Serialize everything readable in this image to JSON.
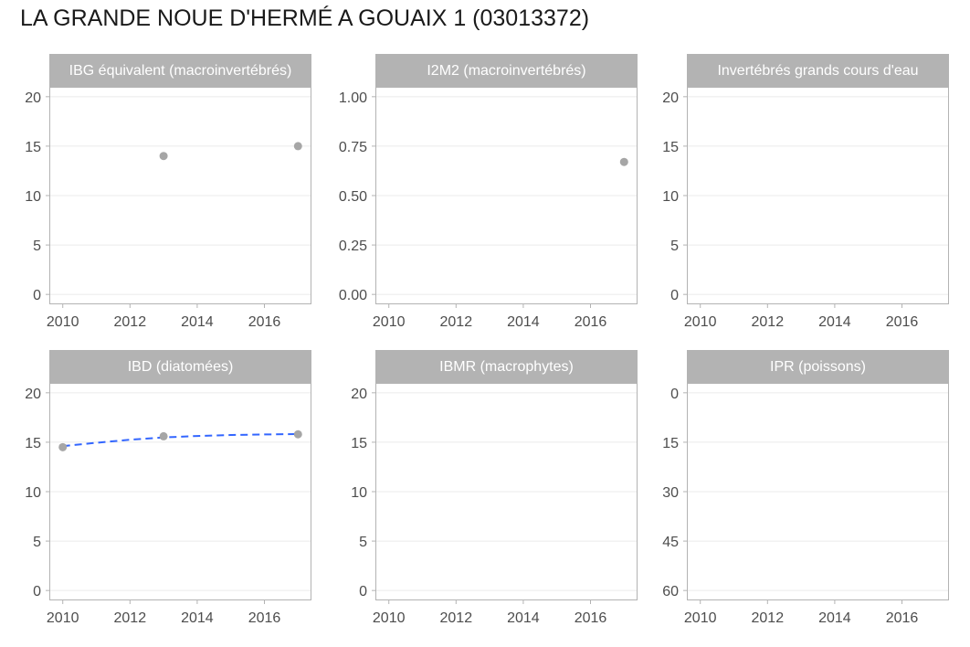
{
  "title": "LA GRANDE NOUE D'HERMÉ A GOUAIX 1 (03013372)",
  "colors": {
    "strip": "#b3b3b3",
    "strip_text": "#ffffff",
    "point": "#a6a6a6",
    "trend": "#3366ff",
    "grid": "#ebebeb",
    "border": "#b3b3b3",
    "tick_text": "#4d4d4d"
  },
  "chart_data": [
    {
      "type": "scatter",
      "title": "IBG équivalent (macroinvertébrés)",
      "xlim": [
        2009.6,
        2017.4
      ],
      "ylim": [
        -1,
        21
      ],
      "x_ticks": [
        2010,
        2012,
        2014,
        2016
      ],
      "y_ticks": [
        0,
        5,
        10,
        15,
        20
      ],
      "y_tick_labels": [
        "0",
        "5",
        "10",
        "15",
        "20"
      ],
      "y_reversed": false,
      "points": [
        {
          "x": 2013,
          "y": 14
        },
        {
          "x": 2017,
          "y": 15
        }
      ],
      "trend": []
    },
    {
      "type": "scatter",
      "title": "I2M2 (macroinvertébrés)",
      "xlim": [
        2009.6,
        2017.4
      ],
      "ylim": [
        -0.05,
        1.05
      ],
      "x_ticks": [
        2010,
        2012,
        2014,
        2016
      ],
      "y_ticks": [
        0,
        0.25,
        0.5,
        0.75,
        1.0
      ],
      "y_tick_labels": [
        "0.00",
        "0.25",
        "0.50",
        "0.75",
        "1.00"
      ],
      "y_reversed": false,
      "points": [
        {
          "x": 2017,
          "y": 0.67
        }
      ],
      "trend": []
    },
    {
      "type": "scatter",
      "title": "Invertébrés grands cours d'eau",
      "xlim": [
        2009.6,
        2017.4
      ],
      "ylim": [
        -1,
        21
      ],
      "x_ticks": [
        2010,
        2012,
        2014,
        2016
      ],
      "y_ticks": [
        0,
        5,
        10,
        15,
        20
      ],
      "y_tick_labels": [
        "0",
        "5",
        "10",
        "15",
        "20"
      ],
      "y_reversed": false,
      "points": [],
      "trend": []
    },
    {
      "type": "scatter",
      "title": "IBD (diatomées)",
      "xlim": [
        2009.6,
        2017.4
      ],
      "ylim": [
        -1,
        21
      ],
      "x_ticks": [
        2010,
        2012,
        2014,
        2016
      ],
      "y_ticks": [
        0,
        5,
        10,
        15,
        20
      ],
      "y_tick_labels": [
        "0",
        "5",
        "10",
        "15",
        "20"
      ],
      "y_reversed": false,
      "points": [
        {
          "x": 2010,
          "y": 14.5
        },
        {
          "x": 2013,
          "y": 15.6
        },
        {
          "x": 2017,
          "y": 15.8
        }
      ],
      "trend": [
        {
          "x": 2010,
          "y": 14.6
        },
        {
          "x": 2011,
          "y": 14.95
        },
        {
          "x": 2012,
          "y": 15.25
        },
        {
          "x": 2013,
          "y": 15.48
        },
        {
          "x": 2014,
          "y": 15.63
        },
        {
          "x": 2015,
          "y": 15.73
        },
        {
          "x": 2016,
          "y": 15.79
        },
        {
          "x": 2017,
          "y": 15.82
        }
      ]
    },
    {
      "type": "scatter",
      "title": "IBMR (macrophytes)",
      "xlim": [
        2009.6,
        2017.4
      ],
      "ylim": [
        -1,
        21
      ],
      "x_ticks": [
        2010,
        2012,
        2014,
        2016
      ],
      "y_ticks": [
        0,
        5,
        10,
        15,
        20
      ],
      "y_tick_labels": [
        "0",
        "5",
        "10",
        "15",
        "20"
      ],
      "y_reversed": false,
      "points": [],
      "trend": []
    },
    {
      "type": "scatter",
      "title": "IPR (poissons)",
      "xlim": [
        2009.6,
        2017.4
      ],
      "ylim": [
        -3,
        63
      ],
      "x_ticks": [
        2010,
        2012,
        2014,
        2016
      ],
      "y_ticks": [
        0,
        15,
        30,
        45,
        60
      ],
      "y_tick_labels": [
        "0",
        "15",
        "30",
        "45",
        "60"
      ],
      "y_reversed": true,
      "points": [],
      "trend": []
    }
  ]
}
